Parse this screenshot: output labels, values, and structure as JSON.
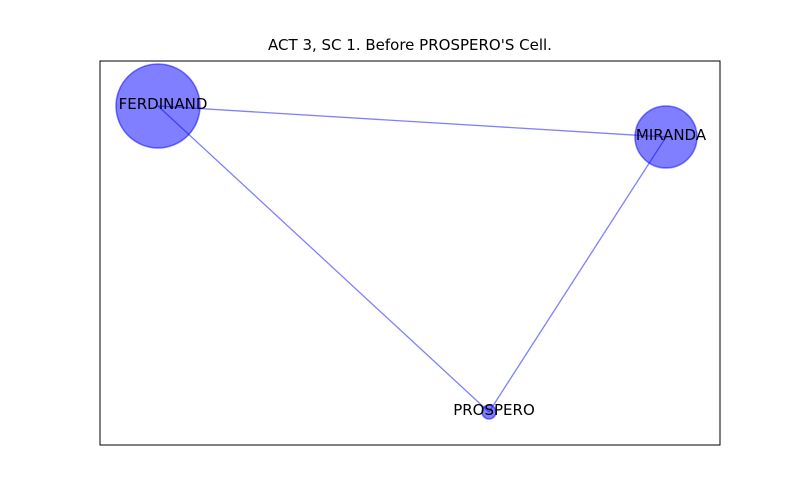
{
  "figure": {
    "title": "ACT 3, SC 1. Before PROSPERO'S Cell."
  },
  "colors": {
    "node_fill": "#0000ff",
    "edge": "#0000ff",
    "frame": "#000000"
  },
  "nodes": [
    {
      "id": "ferdinand",
      "label": "FERDINAND"
    },
    {
      "id": "miranda",
      "label": "MIRANDA"
    },
    {
      "id": "prospero",
      "label": "PROSPERO"
    }
  ],
  "edges": [
    {
      "source": "ferdinand",
      "target": "miranda"
    },
    {
      "source": "ferdinand",
      "target": "prospero"
    },
    {
      "source": "miranda",
      "target": "prospero"
    }
  ]
}
